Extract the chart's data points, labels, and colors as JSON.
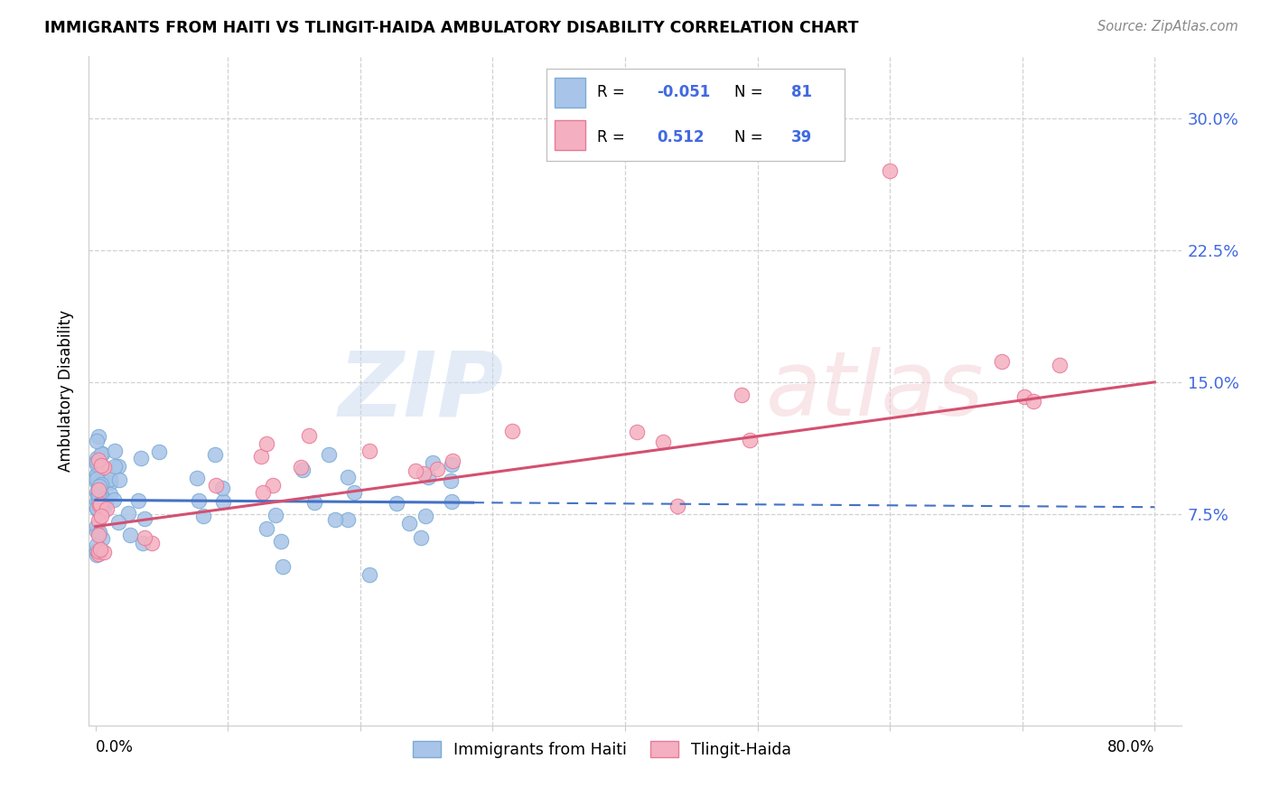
{
  "title": "IMMIGRANTS FROM HAITI VS TLINGIT-HAIDA AMBULATORY DISABILITY CORRELATION CHART",
  "source": "Source: ZipAtlas.com",
  "ylabel": "Ambulatory Disability",
  "ytick_values": [
    0.075,
    0.15,
    0.225,
    0.3
  ],
  "ytick_labels": [
    "7.5%",
    "15.0%",
    "22.5%",
    "30.0%"
  ],
  "xlim": [
    -0.005,
    0.82
  ],
  "ylim": [
    -0.045,
    0.335
  ],
  "blue_face": "#a8c4e8",
  "blue_edge": "#7bacd4",
  "pink_face": "#f4b0c0",
  "pink_edge": "#e87898",
  "blue_line": "#4472c4",
  "pink_line": "#d45070",
  "grid_color": "#cccccc",
  "label_color": "#4169e1",
  "source_color": "#888888"
}
